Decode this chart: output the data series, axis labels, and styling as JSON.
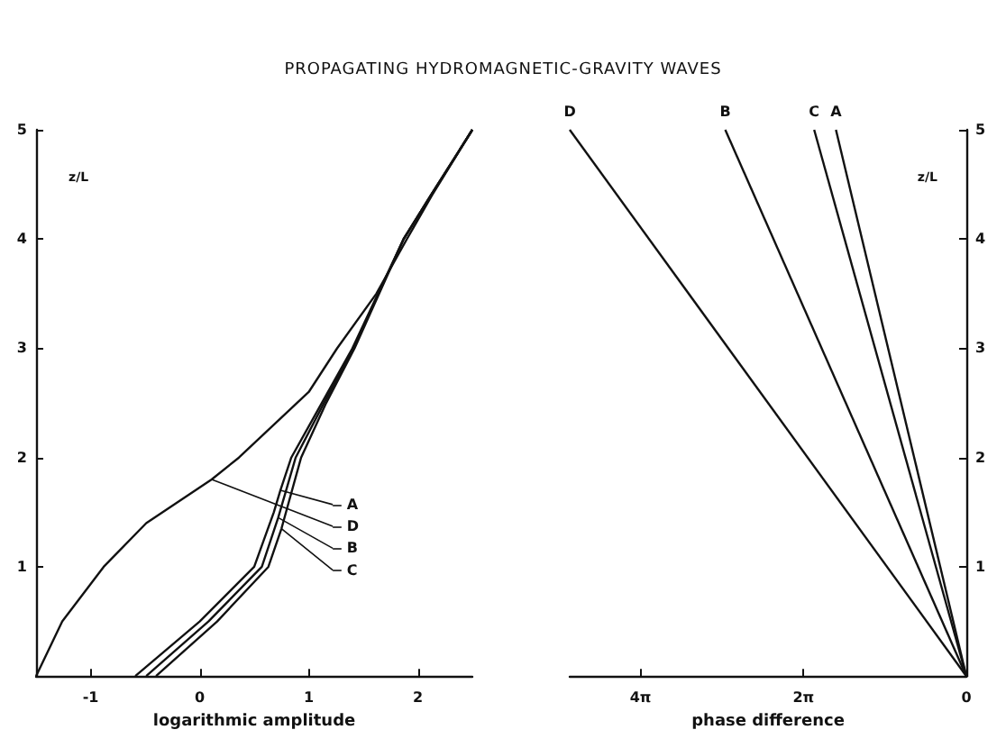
{
  "chart_data": [
    {
      "type": "line",
      "title": "PROPAGATING HYDROMAGNETIC-GRAVITY WAVES",
      "xlabel": "logarithmic amplitude",
      "ylabel": "z/L",
      "xlim": [
        -1.5,
        2.5
      ],
      "xticks": [
        -1,
        0,
        1,
        2
      ],
      "ylim": [
        0,
        5
      ],
      "yticks": [
        1,
        2,
        3,
        4,
        5
      ],
      "grid": false,
      "legend": "right",
      "marker": "none",
      "series": [
        {
          "name": "A",
          "color": "#111111",
          "x": [
            -0.59,
            0.0,
            0.5,
            0.68,
            0.74,
            0.84,
            1.12,
            1.4,
            1.87,
            2.12,
            2.5
          ],
          "values": [
            0,
            0.5,
            1,
            1.5,
            1.7,
            2,
            2.5,
            3,
            4,
            4.4,
            5
          ]
        },
        {
          "name": "D",
          "color": "#111111",
          "x": [
            -1.5,
            -1.26,
            -0.88,
            -0.49,
            0.11,
            0.36,
            1.0,
            1.26,
            1.62,
            1.9,
            2.13,
            2.5
          ],
          "values": [
            0,
            0.5,
            1,
            1.4,
            1.8,
            2,
            2.6,
            3,
            3.5,
            4,
            4.4,
            5
          ]
        },
        {
          "name": "B",
          "color": "#111111",
          "x": [
            -0.49,
            0.08,
            0.57,
            0.72,
            0.88,
            1.14,
            1.41,
            1.87,
            2.12,
            2.5
          ],
          "values": [
            0,
            0.5,
            1,
            1.45,
            2,
            2.5,
            3,
            4,
            4.4,
            5
          ]
        },
        {
          "name": "C",
          "color": "#111111",
          "x": [
            -0.4,
            0.16,
            0.63,
            0.75,
            0.93,
            1.16,
            1.42,
            1.87,
            2.12,
            2.5
          ],
          "values": [
            0,
            0.5,
            1,
            1.35,
            2,
            2.5,
            3,
            4,
            4.4,
            5
          ]
        }
      ]
    },
    {
      "type": "line",
      "xlabel": "phase difference",
      "ylabel": "z/L",
      "xlim": [
        15.3,
        0
      ],
      "xticks": [
        {
          "value": 12.566,
          "label": "4π"
        },
        {
          "value": 6.283,
          "label": "2π"
        },
        0
      ],
      "ylim": [
        0,
        5
      ],
      "yticks": [
        1,
        2,
        3,
        4,
        5
      ],
      "grid": false,
      "legend": false,
      "marker": "none",
      "series": [
        {
          "name": "D",
          "color": "#111111",
          "x": [
            0,
            15.3
          ],
          "values": [
            0,
            5
          ]
        },
        {
          "name": "B",
          "color": "#111111",
          "x": [
            0,
            9.3
          ],
          "values": [
            0,
            5
          ]
        },
        {
          "name": "C",
          "color": "#111111",
          "x": [
            0,
            5.87
          ],
          "values": [
            0,
            5
          ]
        },
        {
          "name": "A",
          "color": "#111111",
          "x": [
            0,
            5.03
          ],
          "values": [
            0,
            5
          ]
        }
      ]
    }
  ]
}
